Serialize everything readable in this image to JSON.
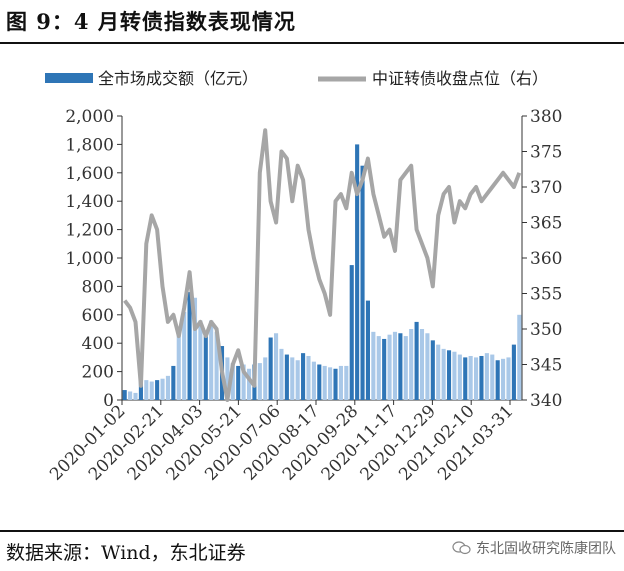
{
  "header": {
    "title": "图 9：4 月转债指数表现情况"
  },
  "footer": {
    "source": "数据来源：Wind，东北证券",
    "watermark": "东北固收研究陈康团队",
    "watermark_icon": "wechat-icon"
  },
  "chart_data": {
    "type": "bar+line",
    "title": "图 9：4 月转债指数表现情况",
    "legend_position": "top",
    "x_tick_labels": [
      "2020-01-02",
      "2020-02-21",
      "2020-04-03",
      "2020-05-21",
      "2020-07-06",
      "2020-08-17",
      "2020-09-28",
      "2020-11-17",
      "2020-12-29",
      "2021-02-10",
      "2021-03-31"
    ],
    "left_axis": {
      "ylim": [
        0,
        2000
      ],
      "ticks": [
        "0",
        "200",
        "400",
        "600",
        "800",
        "1,000",
        "1,200",
        "1,400",
        "1,600",
        "1,800",
        "2,000"
      ]
    },
    "right_axis": {
      "ylim": [
        340,
        380
      ],
      "ticks": [
        "340",
        "345",
        "350",
        "355",
        "360",
        "365",
        "370",
        "375",
        "380"
      ]
    },
    "colors": {
      "bar_light": "#a9c8e8",
      "bar_dark": "#2e75b6",
      "line": "#a6a6a6"
    },
    "series": [
      {
        "name": "全市场成交额（亿元）",
        "type": "bar",
        "axis": "left",
        "values": [
          70,
          60,
          50,
          130,
          140,
          130,
          140,
          150,
          170,
          240,
          480,
          620,
          760,
          720,
          560,
          450,
          560,
          480,
          380,
          300,
          260,
          240,
          250,
          220,
          250,
          260,
          300,
          440,
          470,
          360,
          320,
          300,
          280,
          330,
          310,
          270,
          250,
          240,
          230,
          220,
          240,
          240,
          950,
          1800,
          1650,
          700,
          480,
          450,
          430,
          460,
          480,
          470,
          450,
          500,
          550,
          500,
          470,
          420,
          390,
          360,
          350,
          340,
          320,
          300,
          310,
          300,
          310,
          330,
          320,
          280,
          290,
          300,
          390,
          600
        ]
      },
      {
        "name": "中证转债收盘点位（右）",
        "type": "line",
        "axis": "right",
        "values": [
          354,
          353,
          351,
          342,
          362,
          366,
          364,
          356,
          351,
          352,
          349,
          353,
          358,
          350,
          351,
          349,
          351,
          350,
          344,
          340,
          345,
          347,
          344,
          343,
          342,
          372,
          378,
          368,
          365,
          375,
          374,
          368,
          373,
          371,
          364,
          360,
          357,
          355,
          352,
          368,
          369,
          367,
          372,
          369,
          371,
          374,
          369,
          366,
          363,
          364,
          361,
          371,
          372,
          373,
          364,
          362,
          360,
          356,
          366,
          369,
          370,
          365,
          368,
          367,
          369,
          370,
          368,
          369,
          370,
          371,
          372,
          371,
          370,
          372
        ]
      }
    ]
  }
}
